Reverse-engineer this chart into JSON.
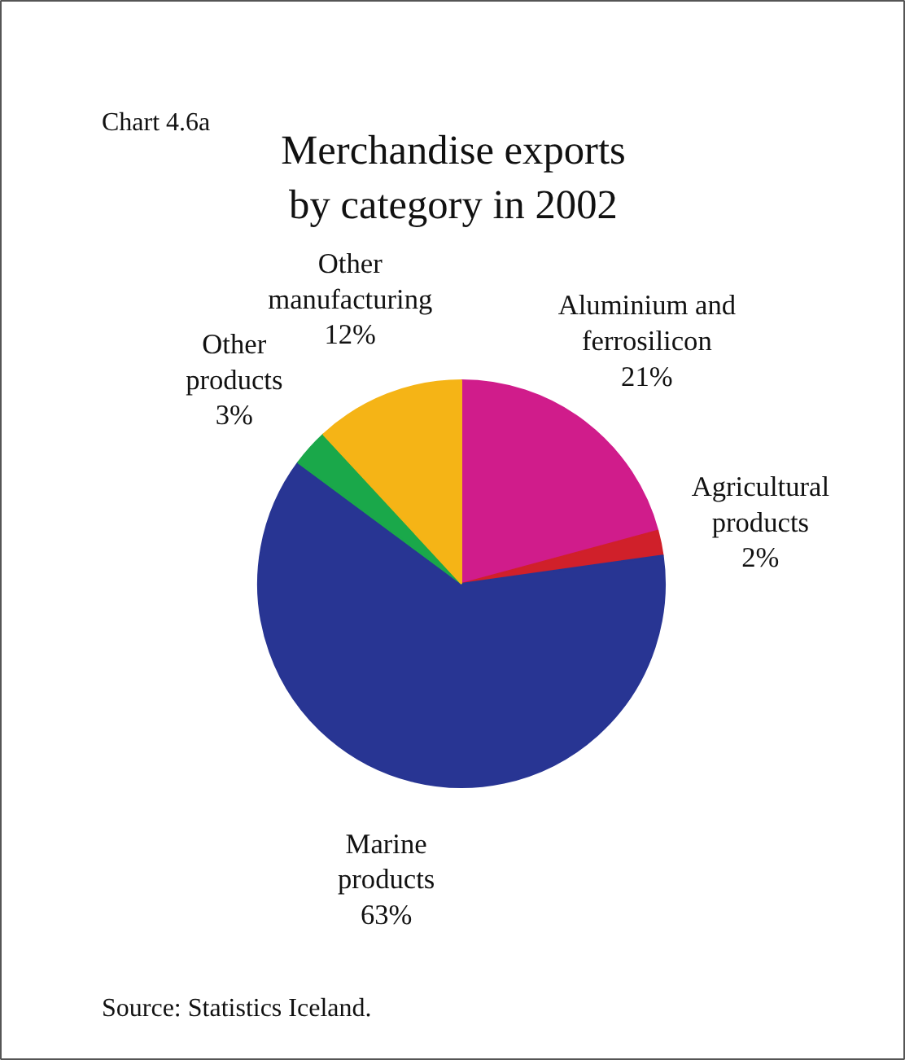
{
  "chart_data": {
    "type": "pie",
    "title": "Merchandise exports\nby category in 2002",
    "categories": [
      "Aluminium and\nferrosilicon",
      "Agricultural\nproducts",
      "Marine\nproducts",
      "Other\nproducts",
      "Other\nmanufacturing"
    ],
    "values": [
      21,
      2,
      63,
      3,
      12
    ],
    "value_labels": [
      "21%",
      "2%",
      "63%",
      "3%",
      "12%"
    ],
    "colors": [
      "#d01c8b",
      "#d0202a",
      "#283593",
      "#1aa84a",
      "#f5b416"
    ],
    "annotations": [
      "Chart 4.6a",
      "Source: Statistics Iceland."
    ]
  }
}
